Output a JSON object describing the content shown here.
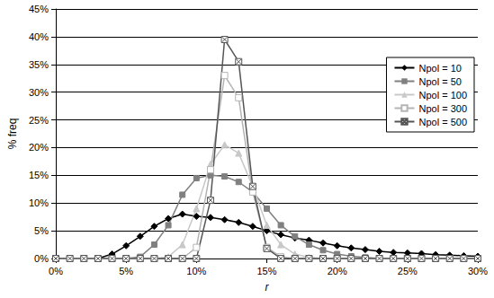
{
  "chart_data": {
    "type": "line",
    "x_label": "r",
    "y_label": "% freq",
    "x": [
      0,
      1,
      2,
      3,
      4,
      5,
      6,
      7,
      8,
      9,
      10,
      11,
      12,
      13,
      14,
      15,
      16,
      17,
      18,
      19,
      20,
      21,
      22,
      23,
      24,
      25,
      26,
      27,
      28,
      29,
      30
    ],
    "xlim": [
      0,
      30
    ],
    "xticks": [
      {
        "value": 0,
        "label": "0%"
      },
      {
        "value": 5,
        "label": "5%"
      },
      {
        "value": 10,
        "label": "10%"
      },
      {
        "value": 15,
        "label": "15%"
      },
      {
        "value": 20,
        "label": "20%"
      },
      {
        "value": 25,
        "label": "25%"
      },
      {
        "value": 30,
        "label": "30%"
      }
    ],
    "ylim": [
      0,
      45
    ],
    "yticks": [
      {
        "value": 0,
        "label": "0%"
      },
      {
        "value": 5,
        "label": "5%"
      },
      {
        "value": 10,
        "label": "10%"
      },
      {
        "value": 15,
        "label": "15%"
      },
      {
        "value": 20,
        "label": "20%"
      },
      {
        "value": 25,
        "label": "25%"
      },
      {
        "value": 30,
        "label": "30%"
      },
      {
        "value": 35,
        "label": "35%"
      },
      {
        "value": 40,
        "label": "40%"
      },
      {
        "value": 45,
        "label": "45%"
      }
    ],
    "grid": true,
    "legend": "right",
    "series": [
      {
        "name": "Npol = 10",
        "color": "#000000",
        "marker": "diamond",
        "values": [
          0,
          0,
          0,
          0,
          0.8,
          2.3,
          4,
          5.8,
          7.2,
          8,
          7.6,
          7.4,
          7,
          6.5,
          5.8,
          5,
          4.3,
          3.7,
          3.3,
          2.8,
          2.3,
          1.9,
          1.6,
          1.3,
          1.1,
          1,
          0.9,
          0.7,
          0.6,
          0.5,
          0.4
        ]
      },
      {
        "name": "Npol = 50",
        "color": "#808080",
        "marker": "square",
        "values": [
          0,
          0,
          0,
          0,
          0,
          0,
          0.3,
          2.5,
          6,
          11.5,
          14.5,
          15,
          14.8,
          13.8,
          12,
          9,
          6,
          4,
          2.5,
          1.5,
          0.8,
          0.4,
          0.2,
          0,
          0,
          0,
          0,
          0,
          0,
          0,
          0
        ]
      },
      {
        "name": "Npol = 100",
        "color": "#c8c8c8",
        "marker": "triangle",
        "values": [
          0,
          0,
          0,
          0,
          0,
          0,
          0,
          0,
          0.3,
          2.5,
          9,
          17,
          20.5,
          19,
          13,
          6,
          2.5,
          0.8,
          0.2,
          0,
          0,
          0,
          0,
          0,
          0,
          0,
          0,
          0,
          0,
          0,
          0
        ]
      },
      {
        "name": "Npol = 300",
        "color": "#b4b4b4",
        "marker": "square_open",
        "values": [
          0,
          0,
          0,
          0,
          0,
          0,
          0,
          0,
          0,
          0,
          2,
          16,
          33,
          29,
          12,
          2,
          0.3,
          0,
          0,
          0,
          0,
          0,
          0,
          0,
          0,
          0,
          0,
          0,
          0,
          0,
          0
        ]
      },
      {
        "name": "Npol = 500",
        "color": "#555555",
        "marker": "x_square",
        "values": [
          0,
          0,
          0,
          0,
          0,
          0,
          0,
          0,
          0,
          0,
          0,
          10.5,
          39.5,
          35.5,
          13,
          1.8,
          0,
          0,
          0,
          0,
          0,
          0,
          0,
          0,
          0,
          0,
          0,
          0,
          0,
          0,
          0
        ]
      }
    ]
  }
}
